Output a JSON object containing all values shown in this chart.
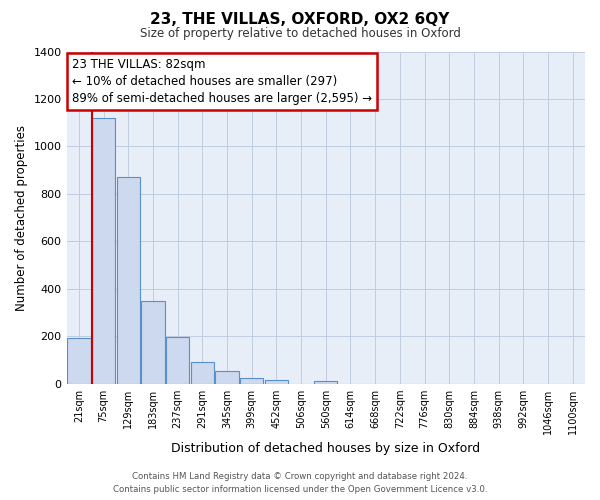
{
  "title": "23, THE VILLAS, OXFORD, OX2 6QY",
  "subtitle": "Size of property relative to detached houses in Oxford",
  "xlabel": "Distribution of detached houses by size in Oxford",
  "ylabel": "Number of detached properties",
  "bar_labels": [
    "21sqm",
    "75sqm",
    "129sqm",
    "183sqm",
    "237sqm",
    "291sqm",
    "345sqm",
    "399sqm",
    "452sqm",
    "506sqm",
    "560sqm",
    "614sqm",
    "668sqm",
    "722sqm",
    "776sqm",
    "830sqm",
    "884sqm",
    "938sqm",
    "992sqm",
    "1046sqm",
    "1100sqm"
  ],
  "bar_heights": [
    190,
    1120,
    870,
    350,
    195,
    90,
    55,
    22,
    15,
    0,
    12,
    0,
    0,
    0,
    0,
    0,
    0,
    0,
    0,
    0,
    0
  ],
  "bar_color": "#ccd9ee",
  "bar_edge_color": "#5b8fc7",
  "vline_color": "#cc0000",
  "ylim": [
    0,
    1400
  ],
  "yticks": [
    0,
    200,
    400,
    600,
    800,
    1000,
    1200,
    1400
  ],
  "annotation_text": "23 THE VILLAS: 82sqm\n← 10% of detached houses are smaller (297)\n89% of semi-detached houses are larger (2,595) →",
  "annotation_box_color": "#ffffff",
  "annotation_box_edge": "#cc0000",
  "footnote_line1": "Contains HM Land Registry data © Crown copyright and database right 2024.",
  "footnote_line2": "Contains public sector information licensed under the Open Government Licence v3.0.",
  "plot_bg_color": "#e8eef8",
  "grid_color": "#c0cde0",
  "background_color": "#ffffff"
}
